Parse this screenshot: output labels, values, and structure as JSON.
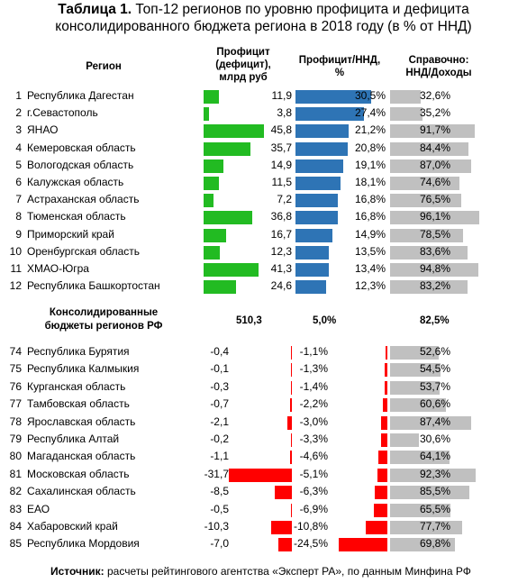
{
  "title": {
    "prefix": "Таблица 1.",
    "line1": "Топ-12 регионов по уровню профицита и дефицита",
    "line2": "консолидированного бюджета региона в 2018 году (в % от ННД)"
  },
  "headers": {
    "region": "Регион",
    "surplus": [
      "Профицит",
      "(дефицит),",
      "млрд руб"
    ],
    "ratio": [
      "Профицит/ННД,",
      "%"
    ],
    "ref": [
      "Справочно:",
      "ННД/Доходы"
    ]
  },
  "colors": {
    "green": "#22bb22",
    "blue": "#2e74b5",
    "gray": "#c0c0c0",
    "red": "#ff0000"
  },
  "top": [
    {
      "rank": "1",
      "name": "Республика Дагестан",
      "surplus": "11,9",
      "surplus_val": 11.9,
      "ratio": "30,5%",
      "ratio_val": 30.5,
      "ref": "32,6%",
      "ref_val": 32.6
    },
    {
      "rank": "2",
      "name": "г.Севастополь",
      "surplus": "3,8",
      "surplus_val": 3.8,
      "ratio": "27,4%",
      "ratio_val": 27.4,
      "ref": "35,2%",
      "ref_val": 35.2
    },
    {
      "rank": "3",
      "name": "ЯНАО",
      "surplus": "45,8",
      "surplus_val": 45.8,
      "ratio": "21,2%",
      "ratio_val": 21.2,
      "ref": "91,7%",
      "ref_val": 91.7
    },
    {
      "rank": "4",
      "name": "Кемеровская область",
      "surplus": "35,7",
      "surplus_val": 35.7,
      "ratio": "20,8%",
      "ratio_val": 20.8,
      "ref": "84,4%",
      "ref_val": 84.4
    },
    {
      "rank": "5",
      "name": "Вологодская область",
      "surplus": "14,9",
      "surplus_val": 14.9,
      "ratio": "19,1%",
      "ratio_val": 19.1,
      "ref": "87,0%",
      "ref_val": 87.0
    },
    {
      "rank": "6",
      "name": "Калужская область",
      "surplus": "11,5",
      "surplus_val": 11.5,
      "ratio": "18,1%",
      "ratio_val": 18.1,
      "ref": "74,6%",
      "ref_val": 74.6
    },
    {
      "rank": "7",
      "name": "Астраханская область",
      "surplus": "7,2",
      "surplus_val": 7.2,
      "ratio": "16,8%",
      "ratio_val": 16.8,
      "ref": "76,5%",
      "ref_val": 76.5
    },
    {
      "rank": "8",
      "name": "Тюменская область",
      "surplus": "36,8",
      "surplus_val": 36.8,
      "ratio": "16,8%",
      "ratio_val": 16.8,
      "ref": "96,1%",
      "ref_val": 96.1
    },
    {
      "rank": "9",
      "name": "Приморский край",
      "surplus": "16,7",
      "surplus_val": 16.7,
      "ratio": "14,9%",
      "ratio_val": 14.9,
      "ref": "78,5%",
      "ref_val": 78.5
    },
    {
      "rank": "10",
      "name": "Оренбургская область",
      "surplus": "12,3",
      "surplus_val": 12.3,
      "ratio": "13,5%",
      "ratio_val": 13.5,
      "ref": "83,6%",
      "ref_val": 83.6
    },
    {
      "rank": "11",
      "name": "ХМАО-Югра",
      "surplus": "41,3",
      "surplus_val": 41.3,
      "ratio": "13,4%",
      "ratio_val": 13.4,
      "ref": "94,8%",
      "ref_val": 94.8
    },
    {
      "rank": "12",
      "name": "Республика Башкортостан",
      "surplus": "24,6",
      "surplus_val": 24.6,
      "ratio": "12,3%",
      "ratio_val": 12.3,
      "ref": "83,2%",
      "ref_val": 83.2
    }
  ],
  "total": {
    "label1": "Консолидированные",
    "label2": "бюджеты регионов РФ",
    "surplus": "510,3",
    "ratio": "5,0%",
    "ref": "82,5%"
  },
  "bottom": [
    {
      "rank": "74",
      "name": "Республика Бурятия",
      "surplus": "-0,4",
      "surplus_val": -0.4,
      "ratio": "-1,1%",
      "ratio_val": -1.1,
      "ref": "52,6%",
      "ref_val": 52.6
    },
    {
      "rank": "75",
      "name": "Республика Калмыкия",
      "surplus": "-0,1",
      "surplus_val": -0.1,
      "ratio": "-1,3%",
      "ratio_val": -1.3,
      "ref": "54,5%",
      "ref_val": 54.5
    },
    {
      "rank": "76",
      "name": "Курганская область",
      "surplus": "-0,3",
      "surplus_val": -0.3,
      "ratio": "-1,4%",
      "ratio_val": -1.4,
      "ref": "53,7%",
      "ref_val": 53.7
    },
    {
      "rank": "77",
      "name": "Тамбовская область",
      "surplus": "-0,7",
      "surplus_val": -0.7,
      "ratio": "-2,2%",
      "ratio_val": -2.2,
      "ref": "60,6%",
      "ref_val": 60.6
    },
    {
      "rank": "78",
      "name": "Ярославская область",
      "surplus": "-2,1",
      "surplus_val": -2.1,
      "ratio": "-3,0%",
      "ratio_val": -3.0,
      "ref": "87,4%",
      "ref_val": 87.4
    },
    {
      "rank": "79",
      "name": "Республика Алтай",
      "surplus": "-0,2",
      "surplus_val": -0.2,
      "ratio": "-3,3%",
      "ratio_val": -3.3,
      "ref": "30,6%",
      "ref_val": 30.6
    },
    {
      "rank": "80",
      "name": "Магаданская область",
      "surplus": "-1,1",
      "surplus_val": -1.1,
      "ratio": "-4,6%",
      "ratio_val": -4.6,
      "ref": "64,1%",
      "ref_val": 64.1
    },
    {
      "rank": "81",
      "name": "Московская область",
      "surplus": "-31,7",
      "surplus_val": -31.7,
      "ratio": "-5,1%",
      "ratio_val": -5.1,
      "ref": "92,3%",
      "ref_val": 92.3
    },
    {
      "rank": "82",
      "name": "Сахалинская область",
      "surplus": "-8,5",
      "surplus_val": -8.5,
      "ratio": "-6,3%",
      "ratio_val": -6.3,
      "ref": "85,5%",
      "ref_val": 85.5
    },
    {
      "rank": "83",
      "name": "ЕАО",
      "surplus": "-0,5",
      "surplus_val": -0.5,
      "ratio": "-6,9%",
      "ratio_val": -6.9,
      "ref": "65,5%",
      "ref_val": 65.5
    },
    {
      "rank": "84",
      "name": "Хабаровский край",
      "surplus": "-10,3",
      "surplus_val": -10.3,
      "ratio": "-10,8%",
      "ratio_val": -10.8,
      "ref": "77,7%",
      "ref_val": 77.7
    },
    {
      "rank": "85",
      "name": "Республика Мордовия",
      "surplus": "-7,0",
      "surplus_val": -7.0,
      "ratio": "-24,5%",
      "ratio_val": -24.5,
      "ref": "69,8%",
      "ref_val": 69.8
    }
  ],
  "source": {
    "label": "Источник:",
    "text": " расчеты рейтингового агентства «Эксперт РА», по данным Минфина РФ"
  }
}
